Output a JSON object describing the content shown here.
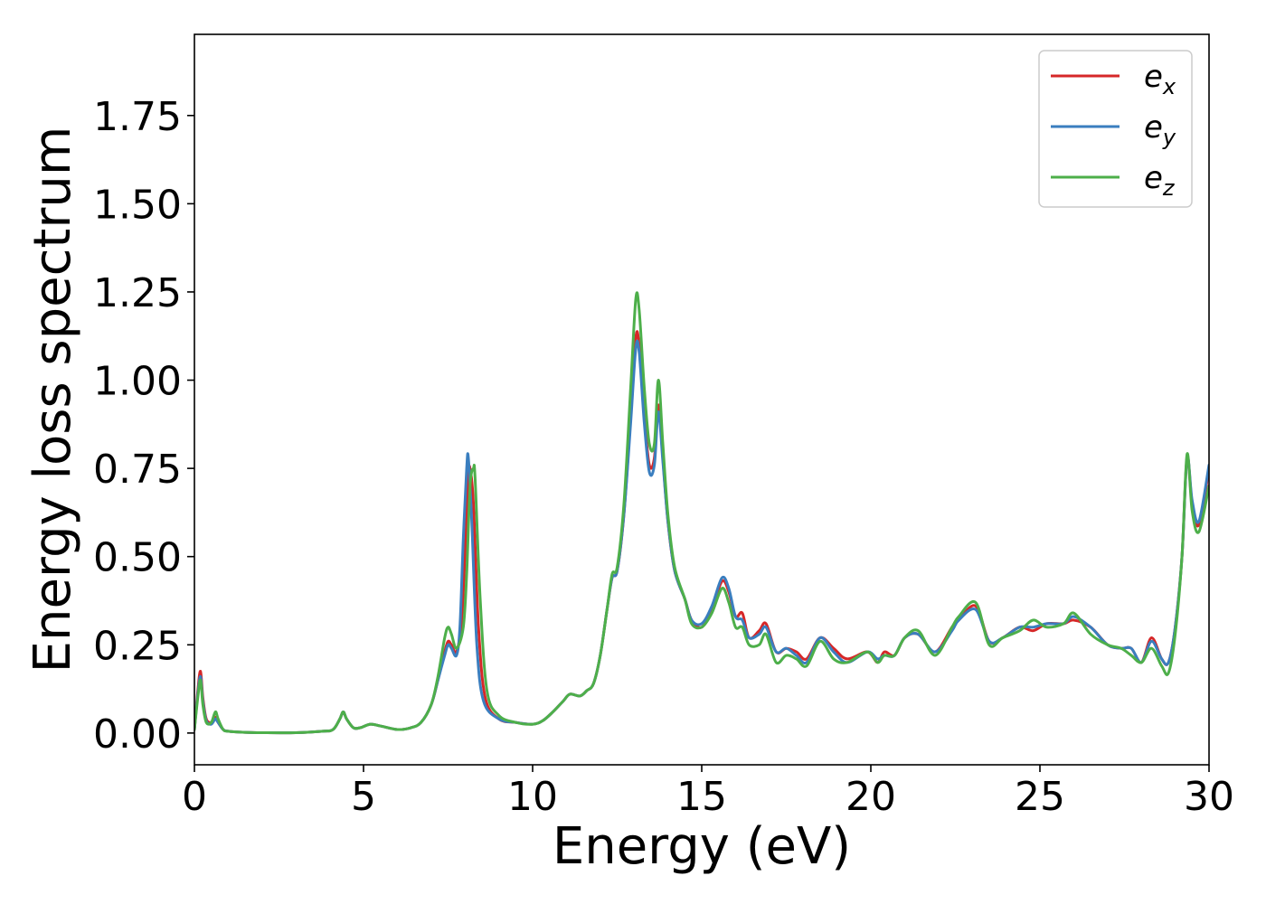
{
  "chart_data": {
    "type": "line",
    "title": "",
    "xlabel": "Energy (eV)",
    "ylabel": "Energy loss spectrum",
    "xlim": [
      0,
      30
    ],
    "ylim": [
      -0.09,
      1.98
    ],
    "xticks": [
      0,
      5,
      10,
      15,
      20,
      25,
      30
    ],
    "xtick_labels": [
      "0",
      "5",
      "10",
      "15",
      "20",
      "25",
      "30"
    ],
    "yticks": [
      0.0,
      0.25,
      0.5,
      0.75,
      1.0,
      1.25,
      1.5,
      1.75
    ],
    "ytick_labels": [
      "0.00",
      "0.25",
      "0.50",
      "0.75",
      "1.00",
      "1.25",
      "1.50",
      "1.75"
    ],
    "grid": false,
    "legend_position": "top-right",
    "series": [
      {
        "name": "e_x",
        "label_base": "e",
        "label_sub": "x",
        "color": "#d62728",
        "x": [
          0,
          0.1,
          0.18,
          0.25,
          0.35,
          0.5,
          0.62,
          0.7,
          0.85,
          1.0,
          1.5,
          2.0,
          3.0,
          3.8,
          4.1,
          4.3,
          4.4,
          4.5,
          4.7,
          4.9,
          5.2,
          5.5,
          6.0,
          6.4,
          6.7,
          7.0,
          7.2,
          7.4,
          7.5,
          7.6,
          7.75,
          7.9,
          8.0,
          8.1,
          8.15,
          8.25,
          8.4,
          8.6,
          9.0,
          9.5,
          10.0,
          10.3,
          10.6,
          10.9,
          11.1,
          11.4,
          11.6,
          11.8,
          12.0,
          12.2,
          12.35,
          12.5,
          12.7,
          12.9,
          13.05,
          13.15,
          13.3,
          13.45,
          13.6,
          13.72,
          13.85,
          14.0,
          14.2,
          14.5,
          14.7,
          15.0,
          15.3,
          15.6,
          15.8,
          16.0,
          16.2,
          16.4,
          16.7,
          16.9,
          17.2,
          17.5,
          17.8,
          18.1,
          18.5,
          18.9,
          19.3,
          19.9,
          20.2,
          20.4,
          20.7,
          21.0,
          21.4,
          21.9,
          22.4,
          22.6,
          23.1,
          23.5,
          23.9,
          24.4,
          24.8,
          25.2,
          25.7,
          26.0,
          26.5,
          27.0,
          27.4,
          27.7,
          28.0,
          28.3,
          28.6,
          28.8,
          29.0,
          29.2,
          29.35,
          29.5,
          29.7,
          30.0
        ],
        "y": [
          0.01,
          0.12,
          0.175,
          0.1,
          0.04,
          0.03,
          0.045,
          0.03,
          0.01,
          0.005,
          0.002,
          0.001,
          0.001,
          0.005,
          0.01,
          0.04,
          0.06,
          0.04,
          0.015,
          0.015,
          0.025,
          0.02,
          0.01,
          0.015,
          0.03,
          0.08,
          0.15,
          0.23,
          0.26,
          0.25,
          0.23,
          0.32,
          0.5,
          0.72,
          0.75,
          0.65,
          0.3,
          0.1,
          0.04,
          0.03,
          0.025,
          0.035,
          0.06,
          0.09,
          0.11,
          0.105,
          0.12,
          0.14,
          0.22,
          0.35,
          0.44,
          0.46,
          0.62,
          0.9,
          1.12,
          1.1,
          0.9,
          0.76,
          0.78,
          0.93,
          0.78,
          0.6,
          0.46,
          0.38,
          0.32,
          0.3,
          0.35,
          0.43,
          0.4,
          0.33,
          0.34,
          0.27,
          0.29,
          0.31,
          0.23,
          0.24,
          0.23,
          0.21,
          0.27,
          0.24,
          0.21,
          0.23,
          0.2,
          0.23,
          0.22,
          0.27,
          0.28,
          0.23,
          0.3,
          0.32,
          0.36,
          0.26,
          0.27,
          0.3,
          0.29,
          0.31,
          0.31,
          0.32,
          0.3,
          0.25,
          0.24,
          0.24,
          0.2,
          0.27,
          0.21,
          0.2,
          0.3,
          0.5,
          0.78,
          0.65,
          0.59,
          0.75
        ]
      },
      {
        "name": "e_y",
        "label_base": "e",
        "label_sub": "y",
        "color": "#3a7ebf",
        "x": [
          0,
          0.1,
          0.18,
          0.25,
          0.35,
          0.5,
          0.62,
          0.7,
          0.85,
          1.0,
          1.5,
          2.0,
          3.0,
          3.8,
          4.1,
          4.3,
          4.4,
          4.5,
          4.7,
          4.9,
          5.2,
          5.5,
          6.0,
          6.4,
          6.7,
          7.0,
          7.2,
          7.4,
          7.5,
          7.6,
          7.75,
          7.85,
          7.95,
          8.05,
          8.1,
          8.2,
          8.35,
          8.55,
          9.0,
          9.5,
          10.0,
          10.3,
          10.6,
          10.9,
          11.1,
          11.4,
          11.6,
          11.8,
          12.0,
          12.2,
          12.35,
          12.5,
          12.7,
          12.9,
          13.05,
          13.15,
          13.3,
          13.45,
          13.6,
          13.72,
          13.85,
          14.0,
          14.2,
          14.5,
          14.7,
          15.0,
          15.3,
          15.6,
          15.8,
          16.0,
          16.2,
          16.4,
          16.7,
          16.9,
          17.2,
          17.5,
          17.8,
          18.1,
          18.5,
          18.9,
          19.3,
          19.9,
          20.2,
          20.4,
          20.7,
          21.0,
          21.4,
          21.9,
          22.4,
          22.6,
          23.1,
          23.5,
          23.9,
          24.4,
          24.8,
          25.2,
          25.7,
          26.0,
          26.5,
          27.0,
          27.4,
          27.7,
          28.0,
          28.3,
          28.6,
          28.8,
          29.0,
          29.2,
          29.35,
          29.5,
          29.7,
          30.0
        ],
        "y": [
          0.01,
          0.11,
          0.16,
          0.09,
          0.035,
          0.025,
          0.04,
          0.03,
          0.01,
          0.005,
          0.002,
          0.001,
          0.001,
          0.005,
          0.01,
          0.04,
          0.06,
          0.04,
          0.015,
          0.015,
          0.025,
          0.02,
          0.01,
          0.015,
          0.03,
          0.08,
          0.15,
          0.22,
          0.25,
          0.24,
          0.22,
          0.3,
          0.55,
          0.75,
          0.78,
          0.6,
          0.25,
          0.09,
          0.04,
          0.03,
          0.025,
          0.035,
          0.06,
          0.09,
          0.11,
          0.105,
          0.12,
          0.14,
          0.22,
          0.35,
          0.44,
          0.46,
          0.62,
          0.88,
          1.09,
          1.08,
          0.88,
          0.74,
          0.76,
          0.91,
          0.77,
          0.6,
          0.46,
          0.38,
          0.32,
          0.31,
          0.36,
          0.44,
          0.41,
          0.33,
          0.32,
          0.27,
          0.28,
          0.3,
          0.23,
          0.24,
          0.22,
          0.2,
          0.27,
          0.23,
          0.2,
          0.23,
          0.21,
          0.22,
          0.22,
          0.27,
          0.28,
          0.23,
          0.29,
          0.32,
          0.35,
          0.26,
          0.27,
          0.3,
          0.3,
          0.31,
          0.31,
          0.33,
          0.3,
          0.25,
          0.24,
          0.24,
          0.2,
          0.26,
          0.21,
          0.2,
          0.3,
          0.5,
          0.78,
          0.66,
          0.6,
          0.76
        ]
      },
      {
        "name": "e_z",
        "label_base": "e",
        "label_sub": "z",
        "color": "#4daf4a",
        "x": [
          0,
          0.1,
          0.18,
          0.25,
          0.35,
          0.5,
          0.62,
          0.7,
          0.85,
          1.0,
          1.5,
          2.0,
          3.0,
          3.8,
          4.1,
          4.3,
          4.4,
          4.5,
          4.7,
          4.9,
          5.2,
          5.5,
          6.0,
          6.4,
          6.7,
          7.0,
          7.2,
          7.4,
          7.5,
          7.6,
          7.75,
          7.95,
          8.05,
          8.15,
          8.25,
          8.3,
          8.45,
          8.65,
          9.0,
          9.5,
          10.0,
          10.3,
          10.6,
          10.9,
          11.1,
          11.4,
          11.6,
          11.8,
          12.0,
          12.2,
          12.35,
          12.5,
          12.7,
          12.9,
          13.05,
          13.15,
          13.3,
          13.45,
          13.6,
          13.72,
          13.85,
          14.0,
          14.2,
          14.5,
          14.7,
          15.0,
          15.3,
          15.6,
          15.8,
          16.0,
          16.2,
          16.4,
          16.7,
          16.9,
          17.2,
          17.5,
          17.8,
          18.1,
          18.5,
          18.9,
          19.3,
          19.9,
          20.2,
          20.4,
          20.7,
          21.0,
          21.4,
          21.9,
          22.4,
          22.6,
          23.1,
          23.5,
          23.9,
          24.4,
          24.8,
          25.2,
          25.7,
          26.0,
          26.5,
          27.0,
          27.4,
          27.7,
          28.0,
          28.3,
          28.6,
          28.8,
          29.0,
          29.2,
          29.35,
          29.5,
          29.7,
          30.0
        ],
        "y": [
          0.01,
          0.1,
          0.15,
          0.08,
          0.03,
          0.03,
          0.06,
          0.04,
          0.01,
          0.005,
          0.002,
          0.001,
          0.001,
          0.005,
          0.01,
          0.04,
          0.06,
          0.04,
          0.015,
          0.015,
          0.025,
          0.02,
          0.01,
          0.015,
          0.03,
          0.08,
          0.16,
          0.27,
          0.3,
          0.28,
          0.24,
          0.3,
          0.45,
          0.7,
          0.75,
          0.72,
          0.38,
          0.12,
          0.05,
          0.03,
          0.025,
          0.035,
          0.06,
          0.09,
          0.11,
          0.105,
          0.12,
          0.14,
          0.22,
          0.35,
          0.45,
          0.47,
          0.65,
          0.98,
          1.23,
          1.2,
          0.98,
          0.82,
          0.82,
          1.0,
          0.82,
          0.62,
          0.47,
          0.38,
          0.31,
          0.3,
          0.34,
          0.41,
          0.37,
          0.3,
          0.3,
          0.25,
          0.25,
          0.28,
          0.2,
          0.22,
          0.21,
          0.19,
          0.26,
          0.21,
          0.2,
          0.23,
          0.2,
          0.22,
          0.22,
          0.27,
          0.29,
          0.22,
          0.3,
          0.33,
          0.37,
          0.25,
          0.27,
          0.29,
          0.32,
          0.3,
          0.31,
          0.34,
          0.28,
          0.25,
          0.24,
          0.22,
          0.2,
          0.24,
          0.19,
          0.17,
          0.28,
          0.5,
          0.79,
          0.63,
          0.57,
          0.7
        ]
      }
    ]
  }
}
